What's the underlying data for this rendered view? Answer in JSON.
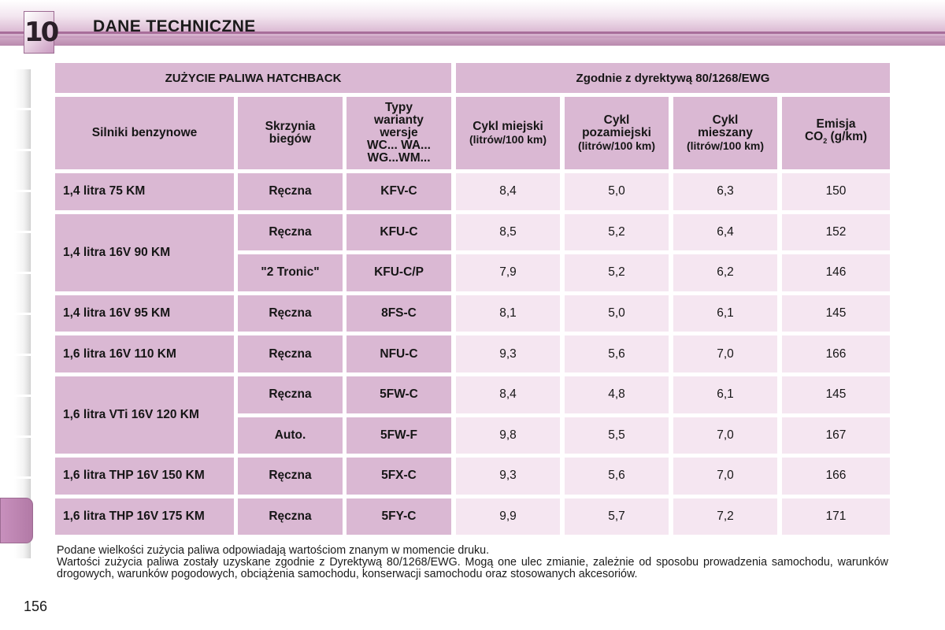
{
  "header": {
    "chapter_number": "10",
    "title": "DANE TECHNICZNE"
  },
  "table": {
    "main_headers": [
      "ZUŻYCIE PALIWA HATCHBACK",
      "Zgodnie z dyrektywą 80/1268/EWG"
    ],
    "column_headers": {
      "engine": "Silniki benzynowe",
      "gearbox": [
        "Skrzynia",
        "biegów"
      ],
      "types": [
        "Typy",
        "warianty",
        "wersje",
        "WC... WA...",
        "WG...WM..."
      ],
      "urban": [
        "Cykl miejski",
        "(litrów/100 km)"
      ],
      "extra_urban": [
        "Cykl",
        "pozamiejski",
        "(litrów/100 km)"
      ],
      "combined": [
        "Cykl",
        "mieszany",
        "(litrów/100 km)"
      ],
      "emission": [
        "Emisja",
        "CO",
        "2",
        " (g/km)"
      ]
    },
    "engines": [
      {
        "label": "1,4 litra 75 KM",
        "variants": [
          {
            "gearbox": "Ręczna",
            "type": "KFV-C",
            "urban": "8,4",
            "extra": "5,0",
            "combined": "6,3",
            "co2": "150"
          }
        ]
      },
      {
        "label": "1,4 litra 16V 90 KM",
        "variants": [
          {
            "gearbox": "Ręczna",
            "type": "KFU-C",
            "urban": "8,5",
            "extra": "5,2",
            "combined": "6,4",
            "co2": "152"
          },
          {
            "gearbox": "\"2 Tronic\"",
            "type": "KFU-C/P",
            "urban": "7,9",
            "extra": "5,2",
            "combined": "6,2",
            "co2": "146"
          }
        ]
      },
      {
        "label": "1,4 litra 16V 95 KM",
        "variants": [
          {
            "gearbox": "Ręczna",
            "type": "8FS-C",
            "urban": "8,1",
            "extra": "5,0",
            "combined": "6,1",
            "co2": "145"
          }
        ]
      },
      {
        "label": "1,6 litra 16V 110 KM",
        "variants": [
          {
            "gearbox": "Ręczna",
            "type": "NFU-C",
            "urban": "9,3",
            "extra": "5,6",
            "combined": "7,0",
            "co2": "166"
          }
        ]
      },
      {
        "label": "1,6 litra VTi 16V 120 KM",
        "variants": [
          {
            "gearbox": "Ręczna",
            "type": "5FW-C",
            "urban": "8,4",
            "extra": "4,8",
            "combined": "6,1",
            "co2": "145"
          },
          {
            "gearbox": "Auto.",
            "type": "5FW-F",
            "urban": "9,8",
            "extra": "5,5",
            "combined": "7,0",
            "co2": "167"
          }
        ]
      },
      {
        "label": "1,6 litra THP 16V 150 KM",
        "variants": [
          {
            "gearbox": "Ręczna",
            "type": "5FX-C",
            "urban": "9,3",
            "extra": "5,6",
            "combined": "7,0",
            "co2": "166"
          }
        ]
      },
      {
        "label": "1,6 litra THP 16V 175 KM",
        "variants": [
          {
            "gearbox": "Ręczna",
            "type": "5FY-C",
            "urban": "9,9",
            "extra": "5,7",
            "combined": "7,2",
            "co2": "171"
          }
        ]
      }
    ]
  },
  "notes": [
    "Podane wielkości zużycia paliwa odpowiadają wartościom znanym w momencie druku.",
    "Wartości zużycia paliwa zostały uzyskane zgodnie z Dyrektywą 80/1268/EWG. Mogą one ulec zmianie, zależnie od sposobu prowadzenia samochodu, warunków drogowych, warunków pogodowych, obciążenia samochodu, konserwacji samochodu oraz stosowanych akcesoriów."
  ],
  "page_number": "156",
  "colors": {
    "header_cell": "#dab8d3",
    "value_cell": "#f5e6f1",
    "accent": "#b27aa6"
  }
}
